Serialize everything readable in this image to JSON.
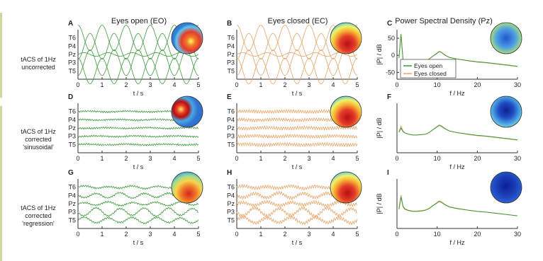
{
  "colors": {
    "eyes_open": "#3d9a3d",
    "eyes_closed": "#e8a466",
    "axis": "#333333",
    "frame_accent": "#c8dc9a"
  },
  "columns": {
    "eo": "Eyes open (EO)",
    "ec": "Eyes closed (EC)",
    "psd": "Power Spectral Density (Pz)"
  },
  "rows": [
    {
      "lines": [
        "tACS of 1Hz",
        "uncorrected"
      ]
    },
    {
      "lines": [
        "tACS of 1Hz",
        "corrected",
        "'sinusoidal'"
      ]
    },
    {
      "lines": [
        "tACS of 1Hz",
        "corrected",
        "'regression'"
      ]
    }
  ],
  "chart_data": [
    {
      "panel": "A",
      "type": "line",
      "xlabel": "t / s",
      "xlim": [
        0,
        5
      ],
      "xticks": [
        0,
        1,
        2,
        3,
        4,
        5
      ],
      "channels": [
        "T6",
        "P4",
        "Pz",
        "P3",
        "T5"
      ],
      "condition": "eyes_open",
      "artifact": "uncorrected",
      "topomap": "eo-uncorrected"
    },
    {
      "panel": "B",
      "type": "line",
      "xlabel": "t / s",
      "xlim": [
        0,
        5
      ],
      "xticks": [
        0,
        1,
        2,
        3,
        4,
        5
      ],
      "channels": [
        "T6",
        "P4",
        "Pz",
        "P3",
        "T5"
      ],
      "condition": "eyes_closed",
      "artifact": "uncorrected",
      "topomap": "ec"
    },
    {
      "panel": "C",
      "type": "line",
      "xlabel": "f / Hz",
      "ylabel": "|P| / dB",
      "xlim": [
        0,
        30
      ],
      "xticks": [
        0,
        10,
        20,
        30
      ],
      "yticks": [
        -50,
        0,
        50
      ],
      "ylim": [
        -70,
        75
      ],
      "legend": {
        "placement": "lower-left",
        "entries": [
          "Eyes open",
          "Eyes closed"
        ]
      },
      "series": [
        {
          "name": "Eyes open",
          "x": [
            0.5,
            1,
            1.5,
            2,
            3,
            4,
            5,
            6,
            7,
            8,
            9,
            10,
            10.5,
            11,
            12,
            13,
            15,
            18,
            20,
            22,
            25,
            28,
            30
          ],
          "y": [
            -8,
            62,
            -12,
            -14,
            -16,
            -18,
            -18,
            -17,
            -16,
            -11,
            -2,
            6,
            11,
            9,
            0,
            -6,
            -11,
            -16,
            -19,
            -21,
            -25,
            -29,
            -32
          ]
        },
        {
          "name": "Eyes closed",
          "x": [
            0.5,
            1,
            1.5,
            2,
            3,
            4,
            5,
            6,
            7,
            8,
            9,
            10,
            10.5,
            11,
            12,
            13,
            15,
            18,
            20,
            22,
            25,
            28,
            30
          ],
          "y": [
            -8,
            62,
            -12,
            -14,
            -16,
            -18,
            -18,
            -17,
            -16,
            -11,
            -2,
            7,
            12,
            10,
            1,
            -6,
            -11,
            -17,
            -20,
            -22,
            -26,
            -30,
            -33
          ]
        }
      ],
      "topomap": "psd-uncorrected"
    },
    {
      "panel": "D",
      "type": "line",
      "xlabel": "t / s",
      "xlim": [
        0,
        5
      ],
      "xticks": [
        0,
        1,
        2,
        3,
        4,
        5
      ],
      "channels": [
        "T6",
        "P4",
        "Pz",
        "P3",
        "T5"
      ],
      "condition": "eyes_open",
      "artifact": "sinusoidal",
      "topomap": "eo"
    },
    {
      "panel": "E",
      "type": "line",
      "xlabel": "t / s",
      "xlim": [
        0,
        5
      ],
      "xticks": [
        0,
        1,
        2,
        3,
        4,
        5
      ],
      "channels": [
        "T6",
        "P4",
        "Pz",
        "P3",
        "T5"
      ],
      "condition": "eyes_closed",
      "artifact": "sinusoidal",
      "topomap": "ec"
    },
    {
      "panel": "F",
      "type": "line",
      "xlabel": "f / Hz",
      "ylabel": "|P| / dB",
      "xlim": [
        0,
        30
      ],
      "xticks": [
        0,
        10,
        20,
        30
      ],
      "ylim": [
        -70,
        75
      ],
      "series": [
        {
          "name": "Eyes open",
          "x": [
            0.5,
            1,
            1.5,
            2,
            3,
            4,
            5,
            6,
            7,
            8,
            9,
            10,
            10.5,
            11,
            12,
            13,
            15,
            18,
            20,
            22,
            25,
            28,
            30
          ],
          "y": [
            -10,
            2,
            -8,
            -12,
            -16,
            -18,
            -18,
            -17,
            -16,
            -11,
            -2,
            6,
            10,
            8,
            0,
            -6,
            -11,
            -16,
            -19,
            -21,
            -25,
            -29,
            -32
          ]
        },
        {
          "name": "Eyes closed",
          "x": [
            0.5,
            1,
            1.5,
            2,
            3,
            4,
            5,
            6,
            7,
            8,
            9,
            10,
            10.5,
            11,
            12,
            13,
            15,
            18,
            20,
            22,
            25,
            28,
            30
          ],
          "y": [
            -8,
            8,
            -6,
            -12,
            -16,
            -18,
            -18,
            -17,
            -16,
            -11,
            -2,
            7,
            12,
            10,
            1,
            -6,
            -11,
            -17,
            -20,
            -22,
            -26,
            -30,
            -33
          ]
        }
      ],
      "topomap": "psd-sinusoidal"
    },
    {
      "panel": "G",
      "type": "line",
      "xlabel": "t / s",
      "xlim": [
        0,
        5
      ],
      "xticks": [
        0,
        1,
        2,
        3,
        4,
        5
      ],
      "channels": [
        "T6",
        "P4",
        "Pz",
        "P3",
        "T5"
      ],
      "condition": "eyes_open",
      "artifact": "regression",
      "topomap": "eo-ec"
    },
    {
      "panel": "H",
      "type": "line",
      "xlabel": "t / s",
      "xlim": [
        0,
        5
      ],
      "xticks": [
        0,
        1,
        2,
        3,
        4,
        5
      ],
      "channels": [
        "T6",
        "P4",
        "Pz",
        "P3",
        "T5"
      ],
      "condition": "eyes_closed",
      "artifact": "regression",
      "topomap": "ec"
    },
    {
      "panel": "I",
      "type": "line",
      "xlabel": "f / Hz",
      "ylabel": "|P| / dB",
      "xlim": [
        0,
        30
      ],
      "xticks": [
        0,
        10,
        20,
        30
      ],
      "ylim": [
        -70,
        75
      ],
      "series": [
        {
          "name": "Eyes open",
          "x": [
            0.5,
            1,
            1.5,
            2,
            3,
            4,
            5,
            6,
            7,
            8,
            9,
            10,
            10.5,
            11,
            12,
            13,
            15,
            18,
            20,
            22,
            25,
            28,
            30
          ],
          "y": [
            -14,
            22,
            -6,
            -14,
            -18,
            -20,
            -20,
            -19,
            -17,
            -12,
            -3,
            5,
            9,
            7,
            -1,
            -7,
            -12,
            -17,
            -20,
            -22,
            -26,
            -30,
            -33
          ]
        },
        {
          "name": "Eyes closed",
          "x": [
            0.5,
            1,
            1.5,
            2,
            3,
            4,
            5,
            6,
            7,
            8,
            9,
            10,
            10.5,
            11,
            12,
            13,
            15,
            18,
            20,
            22,
            25,
            28,
            30
          ],
          "y": [
            -10,
            28,
            -4,
            -12,
            -17,
            -19,
            -19,
            -18,
            -16,
            -11,
            -2,
            6,
            11,
            9,
            0,
            -6,
            -11,
            -17,
            -20,
            -22,
            -26,
            -30,
            -33
          ]
        }
      ],
      "topomap": "psd-regression"
    }
  ]
}
